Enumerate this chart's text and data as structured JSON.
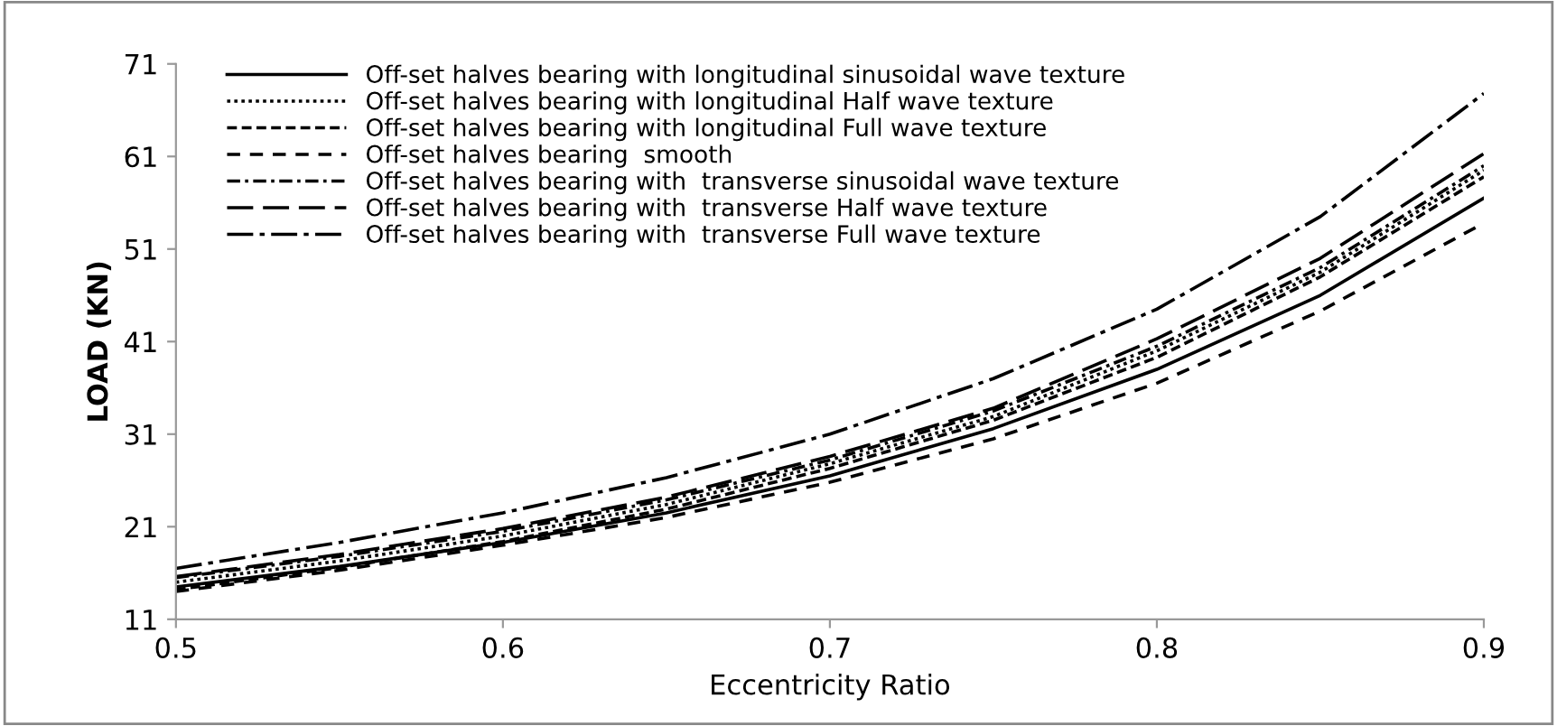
{
  "chart_data": {
    "type": "line",
    "xlabel": "Eccentricity Ratio",
    "ylabel": "LOAD (KN)",
    "x": [
      0.5,
      0.55,
      0.6,
      0.65,
      0.7,
      0.75,
      0.8,
      0.85,
      0.9
    ],
    "xlim": [
      0.5,
      0.9
    ],
    "xticks": [
      0.5,
      0.6,
      0.7,
      0.8,
      0.9
    ],
    "ylim": [
      11,
      71
    ],
    "yticks": [
      11,
      21,
      31,
      41,
      51,
      61,
      71
    ],
    "grid": false,
    "legend": "top left",
    "marker": "none",
    "series": [
      {
        "name": "Off-set halves bearing with longitudinal sinusoidal wave texture",
        "color": "#000000",
        "line_style": "solid",
        "values": [
          14.5,
          16.7,
          19.3,
          22.5,
          26.5,
          31.6,
          38,
          46,
          56.5
        ]
      },
      {
        "name": "Off-set halves bearing with longitudinal Half wave texture",
        "color": "#000000",
        "line_style": "dotted",
        "values": [
          15,
          17.3,
          20,
          23.4,
          27.8,
          32.9,
          40,
          48.5,
          59.5
        ]
      },
      {
        "name": "Off-set halves bearing with longitudinal Full wave texture",
        "color": "#000000",
        "line_style": "dashed",
        "values": [
          14.2,
          16.6,
          19.4,
          22.9,
          27.3,
          32.5,
          39.3,
          48,
          58.8
        ]
      },
      {
        "name": "Off-set halves bearing  smooth",
        "color": "#000000",
        "line_style": "wide dashed",
        "values": [
          14,
          16.3,
          19,
          22,
          25.8,
          30.5,
          36.5,
          44.3,
          53.8
        ]
      },
      {
        "name": "Off-set halves bearing with  transverse sinusoidal wave texture",
        "color": "#000000",
        "line_style": "dashdot",
        "values": [
          15.5,
          17.8,
          20.5,
          23.9,
          28.2,
          33.5,
          40.5,
          49,
          60
        ]
      },
      {
        "name": "Off-set halves bearing with  transverse Half wave texture",
        "color": "#000000",
        "line_style": "long dashed",
        "values": [
          15.6,
          18,
          20.8,
          24.2,
          28.6,
          33.8,
          41.3,
          50,
          61.3
        ]
      },
      {
        "name": "Off-set halves bearing with  transverse Full wave texture",
        "color": "#000000",
        "line_style": "long dashdot",
        "values": [
          16.5,
          19.3,
          22.5,
          26.3,
          31,
          37,
          44.5,
          54.5,
          67.8
        ]
      }
    ]
  }
}
